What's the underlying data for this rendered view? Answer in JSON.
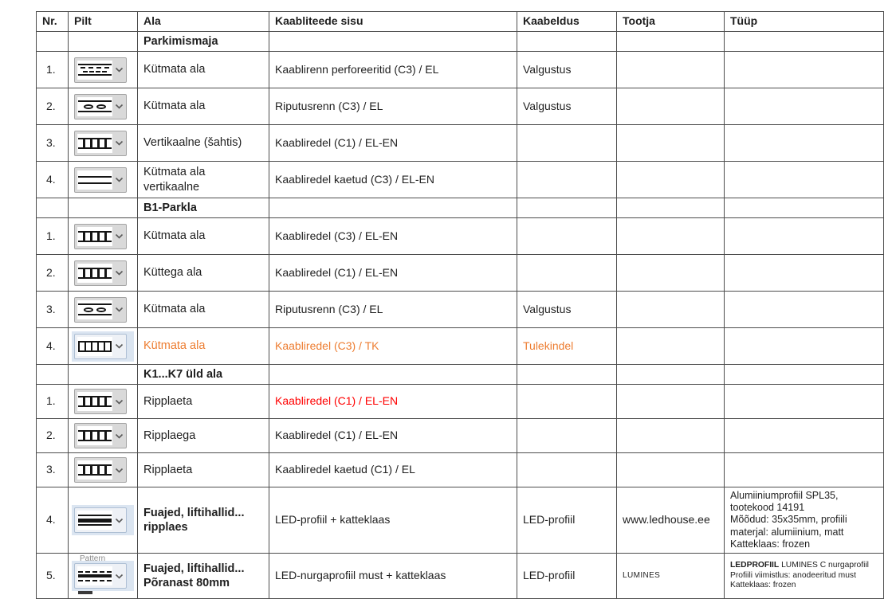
{
  "colors": {
    "accent_orange": "#ED7D31",
    "accent_red": "#FF0000",
    "table_border": "#4d4d4d",
    "dropdown_bg": "#d9d9d9",
    "dropdown_selected_bg": "#dbe5f1"
  },
  "table": {
    "columns": [
      {
        "key": "nr",
        "label": "Nr."
      },
      {
        "key": "pilt",
        "label": "Pilt"
      },
      {
        "key": "ala",
        "label": "Ala"
      },
      {
        "key": "sisu",
        "label": "Kaabliteede sisu"
      },
      {
        "key": "kaabeldus",
        "label": "Kaabeldus"
      },
      {
        "key": "tootja",
        "label": "Tootja"
      },
      {
        "key": "tyyp",
        "label": "Tüüp"
      }
    ],
    "rows": [
      {
        "type": "section",
        "ala": "Parkimismaja"
      },
      {
        "type": "item",
        "nr": "1.",
        "icon": "tray-perforated",
        "ala": [
          "Kütmata ala"
        ],
        "sisu": "Kaablirenn perforeeritid (C3) / EL",
        "kaabeldus": "Valgustus",
        "tootja": "",
        "tyyp": []
      },
      {
        "type": "item",
        "nr": "2.",
        "icon": "suspension-tray",
        "ala": [
          "Kütmata ala"
        ],
        "sisu": "Riputusrenn (C3) / EL",
        "kaabeldus": "Valgustus",
        "tootja": "",
        "tyyp": []
      },
      {
        "type": "item",
        "nr": "3.",
        "icon": "cable-ladder",
        "ala": [
          "Vertikaalne (šahtis)"
        ],
        "sisu": "Kaabliredel (C1) / EL-EN",
        "kaabeldus": "",
        "tootja": "",
        "tyyp": []
      },
      {
        "type": "item",
        "nr": "4.",
        "icon": "double-line",
        "ala": [
          "Kütmata ala vertikaalne"
        ],
        "sisu": "Kaabliredel kaetud (C3) / EL-EN",
        "kaabeldus": "",
        "tootja": "",
        "tyyp": []
      },
      {
        "type": "section",
        "ala": "B1-Parkla"
      },
      {
        "type": "item",
        "nr": "1.",
        "icon": "cable-ladder",
        "ala": [
          "Kütmata ala"
        ],
        "sisu": "Kaabliredel (C3) / EL-EN",
        "kaabeldus": "",
        "tootja": "",
        "tyyp": []
      },
      {
        "type": "item",
        "nr": "2.",
        "icon": "cable-ladder",
        "ala": [
          "Küttega ala"
        ],
        "sisu": "Kaabliredel (C1) / EL-EN",
        "kaabeldus": "",
        "tootja": "",
        "tyyp": []
      },
      {
        "type": "item",
        "nr": "3.",
        "icon": "suspension-tray",
        "ala": [
          "Kütmata ala"
        ],
        "sisu": "Riputusrenn (C3) / EL",
        "kaabeldus": "Valgustus",
        "tootja": "",
        "tyyp": []
      },
      {
        "type": "item",
        "nr": "4.",
        "icon": "ladder-boxed",
        "icon_selected": true,
        "text_color": "orange",
        "ala": [
          "Kütmata ala"
        ],
        "sisu": "Kaabliredel (C3) / TK",
        "kaabeldus": "Tulekindel",
        "tootja": "",
        "tyyp": []
      },
      {
        "type": "section",
        "ala": "K1...K7 üld ala"
      },
      {
        "type": "item",
        "nr": "1.",
        "icon": "cable-ladder",
        "ala": [
          "Ripplaeta"
        ],
        "sisu": "Kaabliredel (C1) / EL-EN",
        "sisu_color": "red",
        "kaabeldus": "",
        "tootja": "",
        "tyyp": []
      },
      {
        "type": "item",
        "nr": "2.",
        "icon": "cable-ladder",
        "ala": [
          "Ripplaega"
        ],
        "sisu": "Kaabliredel (C1) / EL-EN",
        "kaabeldus": "",
        "tootja": "",
        "tyyp": []
      },
      {
        "type": "item",
        "nr": "3.",
        "icon": "cable-ladder",
        "ala": [
          "Ripplaeta"
        ],
        "sisu": "Kaabliredel kaetud (C1) / EL",
        "kaabeldus": "",
        "tootja": "",
        "tyyp": []
      },
      {
        "type": "item",
        "nr": "4.",
        "icon": "led-profile",
        "icon_selected": true,
        "ala": [
          "Fuajed, liftihallid...",
          "ripplaes"
        ],
        "sisu": "LED-profiil + katteklaas",
        "kaabeldus": "LED-profiil",
        "tootja": "www.ledhouse.ee",
        "tyyp": [
          "Alumiiniumprofiil SPL35,",
          "tootekood 14191",
          "Mõõdud: 35x35mm, profiili",
          "materjal: alumiinium, matt",
          "Katteklaas: frozen"
        ],
        "tyyp_size": "medium"
      },
      {
        "type": "item",
        "nr": "5.",
        "icon": "led-corner-profile",
        "icon_selected": true,
        "icon_overlay": "Pattern",
        "ala": [
          "Fuajed, liftihallid...",
          "Põranast 80mm"
        ],
        "sisu": "LED-nurgaprofiil must + katteklaas",
        "kaabeldus": "LED-profiil",
        "tootja": "LUMINES",
        "tootja_small": true,
        "tyyp": [
          "LEDPROFIIL LUMINES C nurgaprofiil",
          "Profiili viimistlus: anodeeritud must",
          "Katteklaas: frozen"
        ],
        "tyyp_size": "small",
        "tyyp_bold_prefix": "LEDPROFIIL"
      }
    ]
  }
}
